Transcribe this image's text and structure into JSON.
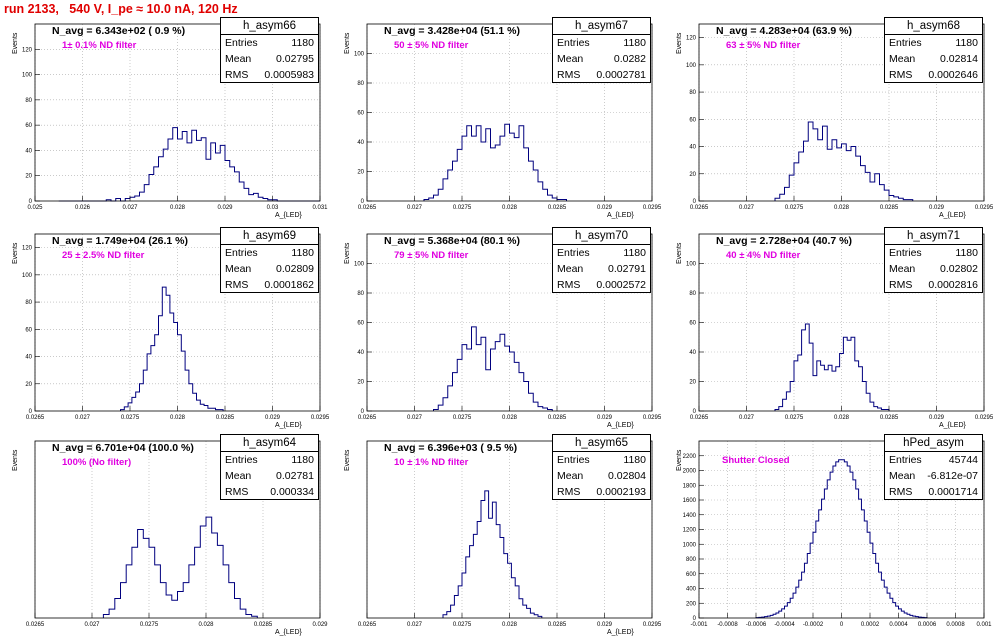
{
  "run_title": "run 2133,   540 V, I_pe ≈ 10.0 nA, 120 Hz",
  "stats_labels": {
    "entries": "Entries",
    "mean": "Mean",
    "rms": "RMS"
  },
  "colors": {
    "title": "#e00000",
    "annotation": "#e000e0",
    "histogram": "#00007f",
    "grid": "#aaaaaa"
  },
  "chart_data": [
    {
      "type": "histogram",
      "id": "h_asym66",
      "stats": {
        "name": "h_asym66",
        "entries": "1180",
        "mean": "0.02795",
        "rms": "0.0005983"
      },
      "n_avg_label": "N_avg = 6.343e+02 ( 0.9 %)",
      "annotation": "1± 0.1% ND filter",
      "ylabel": "Events",
      "xlabel": "A_{LED}",
      "xlim": [
        0.025,
        0.031
      ],
      "ylim": [
        0,
        140
      ],
      "xticks": [
        {
          "v": 0.025,
          "t": "0.025"
        },
        {
          "v": 0.026,
          "t": "0.026"
        },
        {
          "v": 0.027,
          "t": "0.027"
        },
        {
          "v": 0.028,
          "t": "0.028"
        },
        {
          "v": 0.029,
          "t": "0.029"
        },
        {
          "v": 0.03,
          "t": "0.03"
        },
        {
          "v": 0.031,
          "t": "0.031"
        }
      ],
      "yticks": [
        {
          "v": 0,
          "t": "0"
        },
        {
          "v": 20,
          "t": "20"
        },
        {
          "v": 40,
          "t": "40"
        },
        {
          "v": 60,
          "t": "60"
        },
        {
          "v": 80,
          "t": "80"
        },
        {
          "v": 100,
          "t": "100"
        },
        {
          "v": 120,
          "t": "120"
        }
      ],
      "bins": {
        "start": 0.0255,
        "width": 0.0001,
        "values": [
          0,
          0,
          0,
          0,
          0,
          0,
          0,
          0,
          0,
          0,
          1,
          0,
          2,
          0,
          2,
          3,
          4,
          7,
          13,
          21,
          27,
          35,
          41,
          49,
          58,
          49,
          55,
          46,
          56,
          48,
          50,
          33,
          46,
          38,
          44,
          32,
          27,
          23,
          15,
          10,
          5,
          6,
          3,
          2,
          1,
          1,
          0,
          0,
          0,
          0,
          0,
          0,
          0,
          0,
          0
        ]
      }
    },
    {
      "type": "histogram",
      "id": "h_asym67",
      "stats": {
        "name": "h_asym67",
        "entries": "1180",
        "mean": "0.0282",
        "rms": "0.0002781"
      },
      "n_avg_label": "N_avg = 3.428e+04 (51.1 %)",
      "annotation": "50 ± 5% ND filter",
      "ylabel": "Events",
      "xlabel": "A_{LED}",
      "xlim": [
        0.0265,
        0.0295
      ],
      "ylim": [
        0,
        120
      ],
      "xticks": [
        {
          "v": 0.0265,
          "t": "0.0265"
        },
        {
          "v": 0.027,
          "t": "0.027"
        },
        {
          "v": 0.0275,
          "t": "0.0275"
        },
        {
          "v": 0.028,
          "t": "0.028"
        },
        {
          "v": 0.0285,
          "t": "0.0285"
        },
        {
          "v": 0.029,
          "t": "0.029"
        },
        {
          "v": 0.0295,
          "t": "0.0295"
        }
      ],
      "yticks": [
        {
          "v": 0,
          "t": "0"
        },
        {
          "v": 20,
          "t": "20"
        },
        {
          "v": 40,
          "t": "40"
        },
        {
          "v": 60,
          "t": "60"
        },
        {
          "v": 80,
          "t": "80"
        },
        {
          "v": 100,
          "t": "100"
        }
      ],
      "bins": {
        "start": 0.0271,
        "width": 5e-05,
        "values": [
          1,
          2,
          4,
          8,
          15,
          21,
          27,
          35,
          44,
          51,
          44,
          51,
          40,
          49,
          36,
          38,
          44,
          52,
          46,
          43,
          51,
          36,
          27,
          21,
          13,
          8,
          4,
          2,
          1,
          1
        ]
      }
    },
    {
      "type": "histogram",
      "id": "h_asym68",
      "stats": {
        "name": "h_asym68",
        "entries": "1180",
        "mean": "0.02814",
        "rms": "0.0002646"
      },
      "n_avg_label": "N_avg = 4.283e+04 (63.9 %)",
      "annotation": "63 ± 5% ND filter",
      "ylabel": "Events",
      "xlabel": "A_{LED}",
      "xlim": [
        0.0265,
        0.0295
      ],
      "ylim": [
        0,
        130
      ],
      "xticks": [
        {
          "v": 0.0265,
          "t": "0.0265"
        },
        {
          "v": 0.027,
          "t": "0.027"
        },
        {
          "v": 0.0275,
          "t": "0.0275"
        },
        {
          "v": 0.028,
          "t": "0.028"
        },
        {
          "v": 0.0285,
          "t": "0.0285"
        },
        {
          "v": 0.029,
          "t": "0.029"
        },
        {
          "v": 0.0295,
          "t": "0.0295"
        }
      ],
      "yticks": [
        {
          "v": 0,
          "t": "0"
        },
        {
          "v": 20,
          "t": "20"
        },
        {
          "v": 40,
          "t": "40"
        },
        {
          "v": 60,
          "t": "60"
        },
        {
          "v": 80,
          "t": "80"
        },
        {
          "v": 100,
          "t": "100"
        },
        {
          "v": 120,
          "t": "120"
        }
      ],
      "bins": {
        "start": 0.0273,
        "width": 5e-05,
        "values": [
          2,
          5,
          10,
          19,
          28,
          36,
          44,
          58,
          53,
          45,
          55,
          38,
          45,
          39,
          42,
          37,
          40,
          33,
          26,
          21,
          14,
          20,
          12,
          8,
          4,
          3,
          2,
          1,
          1
        ]
      }
    },
    {
      "type": "histogram",
      "id": "h_asym69",
      "stats": {
        "name": "h_asym69",
        "entries": "1180",
        "mean": "0.02809",
        "rms": "0.0001862"
      },
      "n_avg_label": "N_avg = 1.749e+04 (26.1 %)",
      "annotation": "25 ± 2.5% ND filter",
      "ylabel": "Events",
      "xlabel": "A_{LED}",
      "xlim": [
        0.0265,
        0.0295
      ],
      "ylim": [
        0,
        130
      ],
      "xticks": [
        {
          "v": 0.0265,
          "t": "0.0265"
        },
        {
          "v": 0.027,
          "t": "0.027"
        },
        {
          "v": 0.0275,
          "t": "0.0275"
        },
        {
          "v": 0.028,
          "t": "0.028"
        },
        {
          "v": 0.0285,
          "t": "0.0285"
        },
        {
          "v": 0.029,
          "t": "0.029"
        },
        {
          "v": 0.0295,
          "t": "0.0295"
        }
      ],
      "yticks": [
        {
          "v": 0,
          "t": "0"
        },
        {
          "v": 20,
          "t": "20"
        },
        {
          "v": 40,
          "t": "40"
        },
        {
          "v": 60,
          "t": "60"
        },
        {
          "v": 80,
          "t": "80"
        },
        {
          "v": 100,
          "t": "100"
        },
        {
          "v": 120,
          "t": "120"
        }
      ],
      "bins": {
        "start": 0.0274,
        "width": 4e-05,
        "values": [
          1,
          3,
          6,
          10,
          14,
          20,
          30,
          42,
          48,
          56,
          70,
          91,
          85,
          72,
          65,
          56,
          44,
          30,
          20,
          13,
          8,
          5,
          4,
          2,
          2,
          1,
          1
        ]
      }
    },
    {
      "type": "histogram",
      "id": "h_asym70",
      "stats": {
        "name": "h_asym70",
        "entries": "1180",
        "mean": "0.02791",
        "rms": "0.0002572"
      },
      "n_avg_label": "N_avg = 5.368e+04 (80.1 %)",
      "annotation": "79 ± 5% ND filter",
      "ylabel": "Events",
      "xlabel": "A_{LED}",
      "xlim": [
        0.0265,
        0.0295
      ],
      "ylim": [
        0,
        120
      ],
      "xticks": [
        {
          "v": 0.0265,
          "t": "0.0265"
        },
        {
          "v": 0.027,
          "t": "0.027"
        },
        {
          "v": 0.0275,
          "t": "0.0275"
        },
        {
          "v": 0.028,
          "t": "0.028"
        },
        {
          "v": 0.0285,
          "t": "0.0285"
        },
        {
          "v": 0.029,
          "t": "0.029"
        },
        {
          "v": 0.0295,
          "t": "0.0295"
        }
      ],
      "yticks": [
        {
          "v": 0,
          "t": "0"
        },
        {
          "v": 20,
          "t": "20"
        },
        {
          "v": 40,
          "t": "40"
        },
        {
          "v": 60,
          "t": "60"
        },
        {
          "v": 80,
          "t": "80"
        },
        {
          "v": 100,
          "t": "100"
        }
      ],
      "bins": {
        "start": 0.0272,
        "width": 5e-05,
        "values": [
          1,
          4,
          9,
          17,
          26,
          35,
          45,
          42,
          57,
          45,
          50,
          28,
          42,
          47,
          52,
          44,
          40,
          33,
          26,
          20,
          12,
          6,
          3,
          2,
          1
        ]
      }
    },
    {
      "type": "histogram",
      "id": "h_asym71",
      "stats": {
        "name": "h_asym71",
        "entries": "1180",
        "mean": "0.02802",
        "rms": "0.0002816"
      },
      "n_avg_label": "N_avg = 2.728e+04 (40.7 %)",
      "annotation": "40 ± 4% ND filter",
      "ylabel": "Events",
      "xlabel": "A_{LED}",
      "xlim": [
        0.0265,
        0.0295
      ],
      "ylim": [
        0,
        120
      ],
      "xticks": [
        {
          "v": 0.0265,
          "t": "0.0265"
        },
        {
          "v": 0.027,
          "t": "0.027"
        },
        {
          "v": 0.0275,
          "t": "0.0275"
        },
        {
          "v": 0.028,
          "t": "0.028"
        },
        {
          "v": 0.0285,
          "t": "0.0285"
        },
        {
          "v": 0.029,
          "t": "0.029"
        },
        {
          "v": 0.0295,
          "t": "0.0295"
        }
      ],
      "yticks": [
        {
          "v": 0,
          "t": "0"
        },
        {
          "v": 20,
          "t": "20"
        },
        {
          "v": 40,
          "t": "40"
        },
        {
          "v": 60,
          "t": "60"
        },
        {
          "v": 80,
          "t": "80"
        },
        {
          "v": 100,
          "t": "100"
        }
      ],
      "bins": {
        "start": 0.0273,
        "width": 4e-05,
        "values": [
          1,
          3,
          8,
          13,
          20,
          34,
          38,
          55,
          59,
          46,
          24,
          34,
          31,
          28,
          31,
          27,
          30,
          39,
          50,
          48,
          50,
          34,
          30,
          20,
          12,
          6,
          3,
          2,
          1,
          1
        ]
      }
    },
    {
      "type": "histogram",
      "id": "h_asym64",
      "stats": {
        "name": "h_asym64",
        "entries": "1180",
        "mean": "0.02781",
        "rms": "0.000334"
      },
      "n_avg_label": "N_avg = 6.701e+04 (100.0 %)",
      "annotation": "100% (No filter)",
      "ylabel": "Events",
      "xlabel": "A_{LED}",
      "xlim": [
        0.0265,
        0.029
      ],
      "ylim": [
        0,
        100
      ],
      "xticks": [
        {
          "v": 0.0265,
          "t": "0.0265"
        },
        {
          "v": 0.027,
          "t": "0.027"
        },
        {
          "v": 0.0275,
          "t": "0.0275"
        },
        {
          "v": 0.028,
          "t": "0.028"
        },
        {
          "v": 0.0285,
          "t": "0.0285"
        },
        {
          "v": 0.029,
          "t": "0.029"
        }
      ],
      "yticks": [],
      "bins": {
        "start": 0.0271,
        "width": 5e-05,
        "values": [
          2,
          5,
          11,
          20,
          30,
          40,
          50,
          45,
          40,
          30,
          20,
          13,
          10,
          15,
          20,
          30,
          40,
          52,
          57,
          48,
          41,
          30,
          20,
          11,
          5,
          2,
          1
        ]
      }
    },
    {
      "type": "histogram",
      "id": "h_asym65",
      "stats": {
        "name": "h_asym65",
        "entries": "1180",
        "mean": "0.02804",
        "rms": "0.0002193"
      },
      "n_avg_label": "N_avg = 6.396e+03 ( 9.5 %)",
      "annotation": "10 ± 1% ND filter",
      "ylabel": "Events",
      "xlabel": "A_{LED}",
      "xlim": [
        0.0265,
        0.0295
      ],
      "ylim": [
        0,
        110
      ],
      "xticks": [
        {
          "v": 0.0265,
          "t": "0.0265"
        },
        {
          "v": 0.027,
          "t": "0.027"
        },
        {
          "v": 0.0275,
          "t": "0.0275"
        },
        {
          "v": 0.028,
          "t": "0.028"
        },
        {
          "v": 0.0285,
          "t": "0.0285"
        },
        {
          "v": 0.029,
          "t": "0.029"
        },
        {
          "v": 0.0295,
          "t": "0.0295"
        }
      ],
      "yticks": [],
      "bins": {
        "start": 0.0273,
        "width": 4e-05,
        "values": [
          2,
          4,
          8,
          14,
          20,
          28,
          38,
          45,
          52,
          60,
          73,
          79,
          62,
          72,
          58,
          50,
          40,
          34,
          25,
          20,
          12,
          8,
          6,
          3,
          2,
          1
        ]
      }
    },
    {
      "type": "histogram",
      "id": "hPed_asym",
      "stats": {
        "name": "hPed_asym",
        "entries": "45744",
        "mean": "-6.812e-07",
        "rms": "0.0001714"
      },
      "n_avg_label": "",
      "annotation": "Shutter Closed",
      "ylabel": "Events",
      "xlabel": "",
      "xlim": [
        -0.001,
        0.001
      ],
      "ylim": [
        0,
        2400
      ],
      "xticks": [
        {
          "v": -0.001,
          "t": "-0.001"
        },
        {
          "v": -0.0008,
          "t": "-0.0008"
        },
        {
          "v": -0.0006,
          "t": "-0.0006"
        },
        {
          "v": -0.0004,
          "t": "-0.0004"
        },
        {
          "v": -0.0002,
          "t": "-0.0002"
        },
        {
          "v": 0,
          "t": "0"
        },
        {
          "v": 0.0002,
          "t": "0.0002"
        },
        {
          "v": 0.0004,
          "t": "0.0004"
        },
        {
          "v": 0.0006,
          "t": "0.0006"
        },
        {
          "v": 0.0008,
          "t": "0.0008"
        },
        {
          "v": 0.001,
          "t": "0.001"
        }
      ],
      "yticks": [
        {
          "v": 0,
          "t": "0"
        },
        {
          "v": 200,
          "t": "200"
        },
        {
          "v": 400,
          "t": "400"
        },
        {
          "v": 600,
          "t": "600"
        },
        {
          "v": 800,
          "t": "800"
        },
        {
          "v": 1000,
          "t": "1000"
        },
        {
          "v": 1200,
          "t": "1200"
        },
        {
          "v": 1400,
          "t": "1400"
        },
        {
          "v": 1600,
          "t": "1600"
        },
        {
          "v": 1800,
          "t": "1800"
        },
        {
          "v": 2000,
          "t": "2000"
        },
        {
          "v": 2200,
          "t": "2200"
        }
      ],
      "gaussian": {
        "mean": 0,
        "sigma": 0.0001714,
        "peak": 2150,
        "start": -0.0006,
        "end": 0.0006,
        "width": 2e-05
      }
    }
  ]
}
